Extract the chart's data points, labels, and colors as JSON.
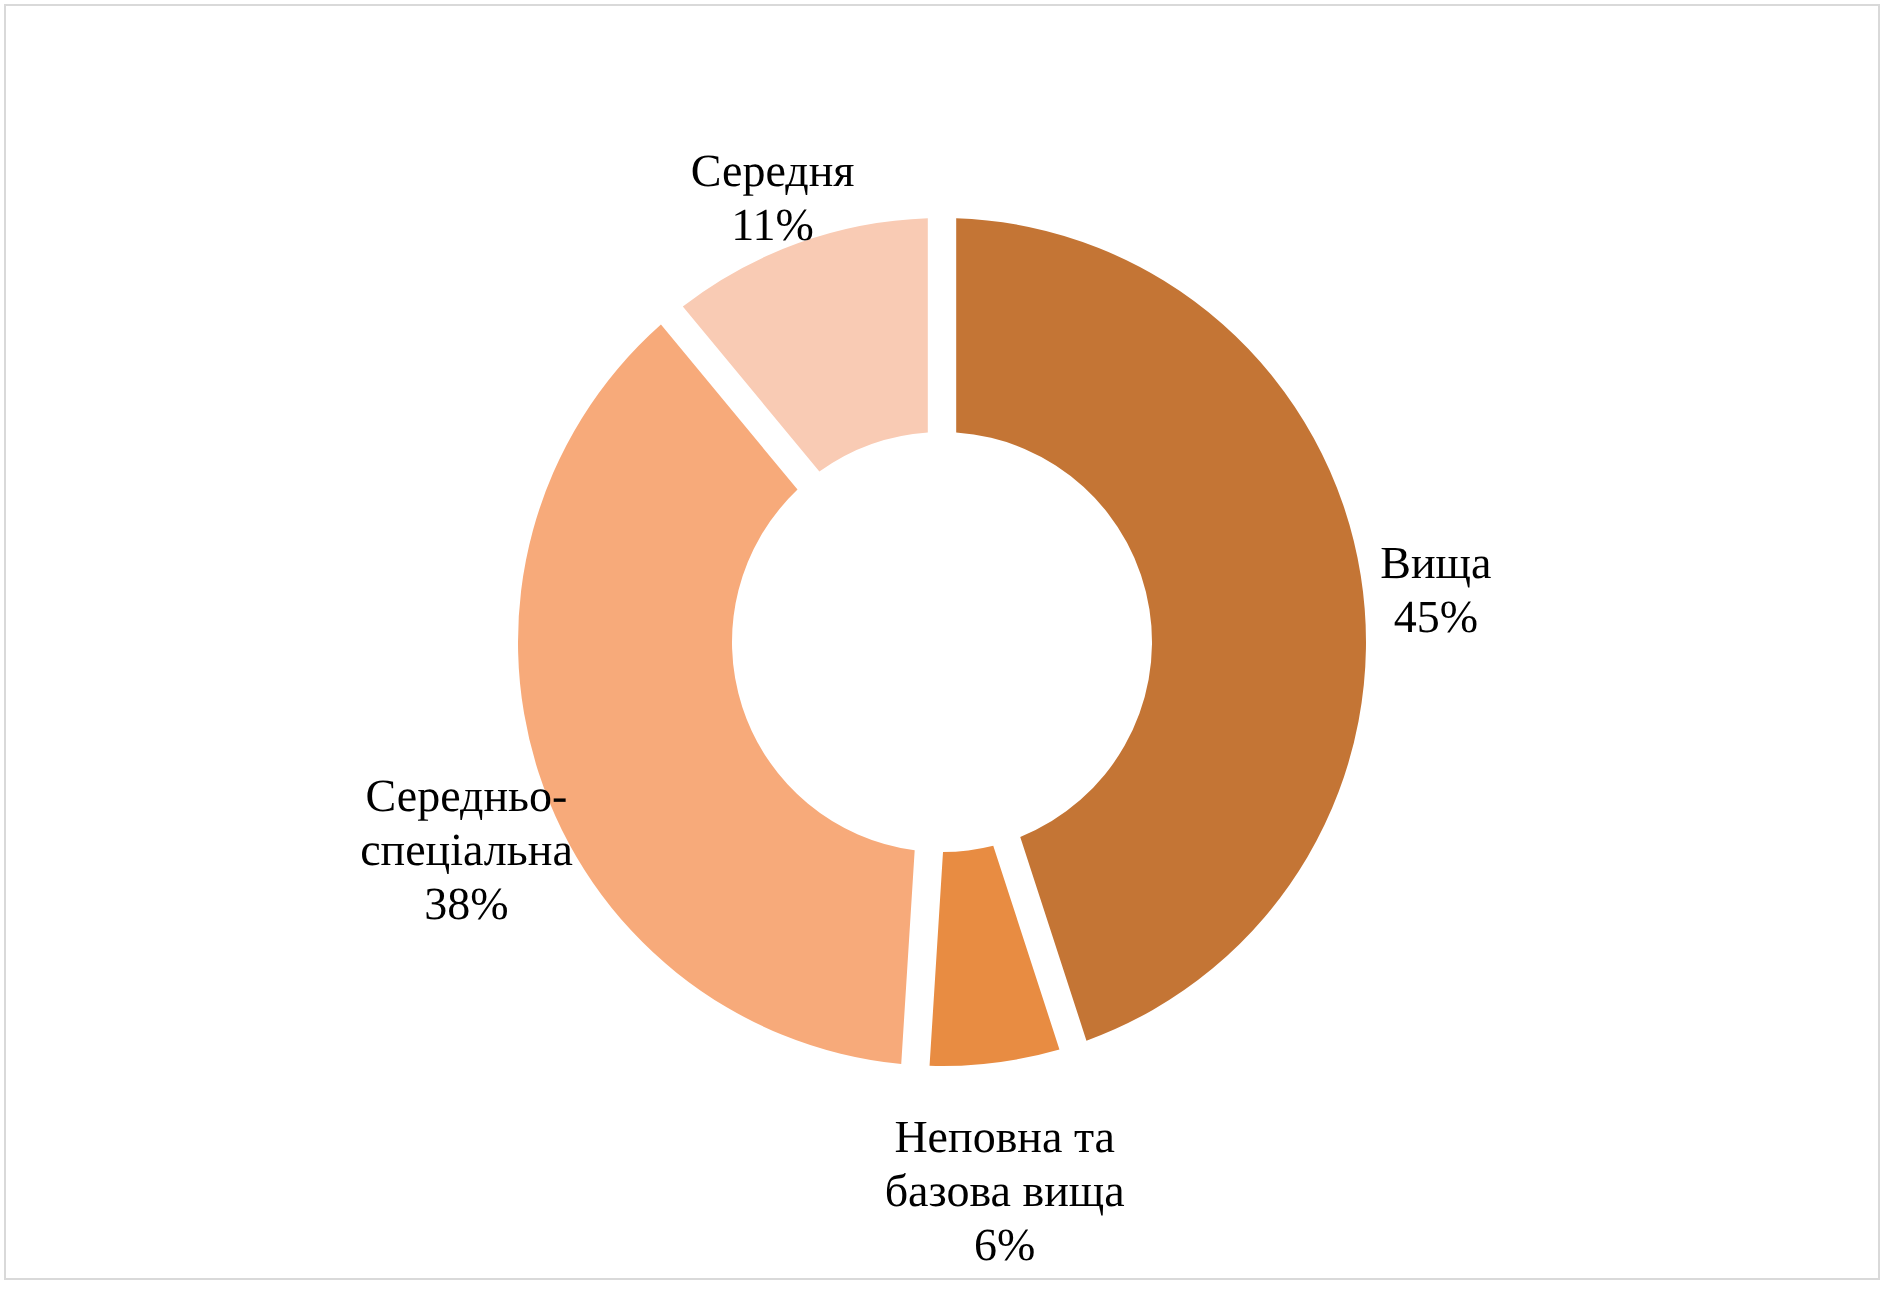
{
  "chart_data": {
    "type": "donut",
    "categories": [
      "Вища",
      "Неповна та базова вища",
      "Середньо-спеціальна",
      "Середня"
    ],
    "values": [
      45,
      6,
      38,
      11
    ],
    "value_labels": [
      "45%",
      "6%",
      "38%",
      "11%"
    ],
    "colors": [
      "#c47535",
      "#e88c42",
      "#f7aa7a",
      "#f9cbb4"
    ],
    "legend": false
  }
}
